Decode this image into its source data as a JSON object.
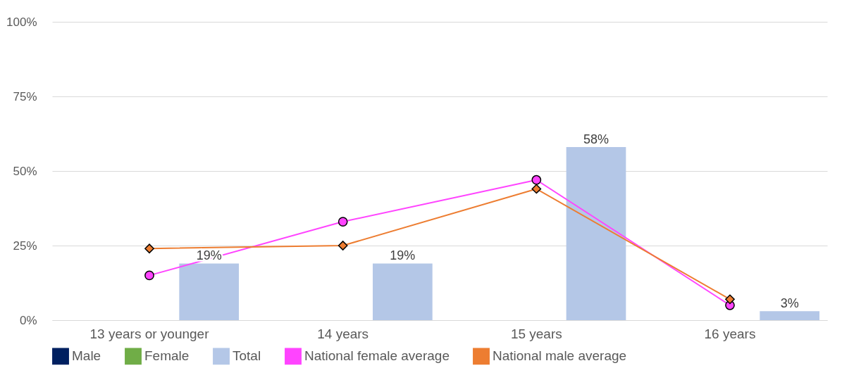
{
  "chart_data": {
    "type": "bar",
    "categories": [
      "13 years or younger",
      "14 years",
      "15 years",
      "16 years"
    ],
    "series": [
      {
        "name": "Male",
        "color": "#002060",
        "values": [
          null,
          null,
          null,
          null
        ]
      },
      {
        "name": "Female",
        "color": "#70ad47",
        "values": [
          null,
          null,
          null,
          null
        ]
      },
      {
        "name": "Total",
        "color": "#b4c7e7",
        "values": [
          19,
          19,
          58,
          3
        ],
        "value_labels": [
          "19%",
          "19%",
          "58%",
          "3%"
        ]
      },
      {
        "name": "National female average",
        "type": "line",
        "color": "#ff44ff",
        "marker": "circle",
        "values": [
          15,
          33,
          47,
          5
        ]
      },
      {
        "name": "National male average",
        "type": "line",
        "color": "#ed7d31",
        "marker": "diamond",
        "values": [
          24,
          25,
          44,
          7
        ]
      }
    ],
    "ylim": [
      0,
      100
    ],
    "yticks": [
      {
        "value": 0,
        "label": "0%"
      },
      {
        "value": 25,
        "label": "25%"
      },
      {
        "value": 50,
        "label": "50%"
      },
      {
        "value": 75,
        "label": "75%"
      },
      {
        "value": 100,
        "label": "100%"
      }
    ],
    "grid": "y",
    "legend": "bottom"
  }
}
